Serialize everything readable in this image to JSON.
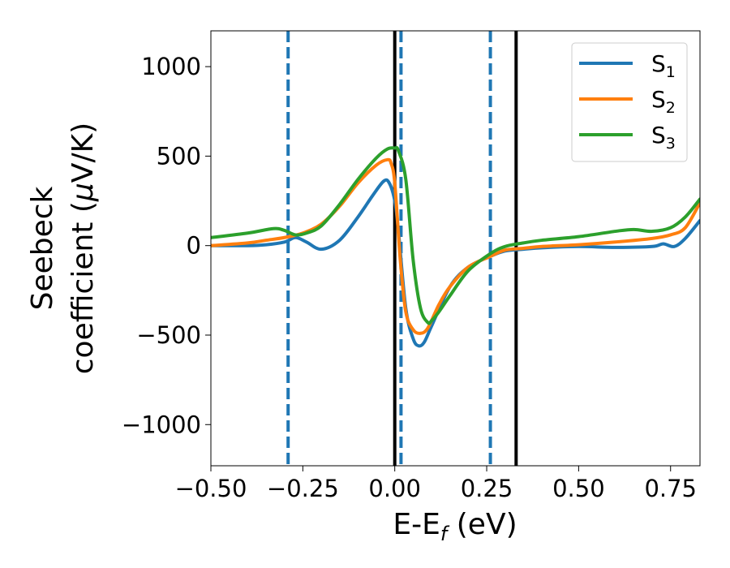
{
  "chart_data": {
    "type": "line",
    "title": "",
    "xlabel": {
      "base": "E-E",
      "sub": "f",
      "suffix": " (eV)"
    },
    "ylabel": {
      "line1": "Seebeck",
      "line2": "coefficient  (",
      "mu": "μ",
      "line2_end": "V/K)"
    },
    "xlim": [
      -0.5,
      0.83
    ],
    "ylim": [
      -1230,
      1200
    ],
    "xticks": [
      -0.5,
      -0.25,
      0.0,
      0.25,
      0.5,
      0.75
    ],
    "xtick_labels": [
      "−0.50",
      "−0.25",
      "0.00",
      "0.25",
      "0.50",
      "0.75"
    ],
    "yticks": [
      1000,
      500,
      0,
      -500,
      -1000
    ],
    "ytick_labels": [
      "1000",
      "500",
      "0",
      "−500",
      "−1000"
    ],
    "grid": false,
    "legend_position": "top-right",
    "series": [
      {
        "name": "S",
        "sub": "1",
        "color": "#1f77b4",
        "x": [
          -0.5,
          -0.4,
          -0.35,
          -0.3,
          -0.27,
          -0.24,
          -0.2,
          -0.15,
          -0.1,
          -0.06,
          -0.03,
          -0.015,
          0.0,
          0.01,
          0.03,
          0.05,
          0.065,
          0.08,
          0.1,
          0.15,
          0.2,
          0.26,
          0.3,
          0.35,
          0.4,
          0.5,
          0.6,
          0.7,
          0.73,
          0.76,
          0.79,
          0.83
        ],
        "y": [
          0,
          0,
          5,
          20,
          45,
          20,
          -20,
          30,
          160,
          280,
          360,
          350,
          250,
          80,
          -350,
          -520,
          -560,
          -540,
          -450,
          -230,
          -120,
          -60,
          -30,
          -20,
          -12,
          -5,
          -10,
          -5,
          10,
          -5,
          40,
          140
        ]
      },
      {
        "name": "S",
        "sub": "2",
        "color": "#ff7f0e",
        "x": [
          -0.5,
          -0.4,
          -0.35,
          -0.3,
          -0.25,
          -0.2,
          -0.15,
          -0.1,
          -0.05,
          -0.02,
          -0.01,
          0.0,
          0.015,
          0.03,
          0.05,
          0.07,
          0.09,
          0.12,
          0.15,
          0.2,
          0.26,
          0.3,
          0.35,
          0.4,
          0.5,
          0.6,
          0.7,
          0.75,
          0.79,
          0.83
        ],
        "y": [
          0,
          15,
          30,
          45,
          70,
          120,
          220,
          350,
          450,
          480,
          460,
          350,
          -80,
          -370,
          -470,
          -490,
          -460,
          -330,
          -230,
          -120,
          -60,
          -25,
          -15,
          -5,
          5,
          20,
          40,
          60,
          100,
          240
        ]
      },
      {
        "name": "S",
        "sub": "3",
        "color": "#2ca02c",
        "x": [
          -0.5,
          -0.4,
          -0.33,
          -0.3,
          -0.27,
          -0.24,
          -0.2,
          -0.15,
          -0.1,
          -0.05,
          -0.02,
          0.0,
          0.01,
          0.03,
          0.05,
          0.07,
          0.09,
          0.1,
          0.12,
          0.15,
          0.2,
          0.26,
          0.3,
          0.35,
          0.4,
          0.5,
          0.6,
          0.65,
          0.7,
          0.75,
          0.79,
          0.83
        ],
        "y": [
          45,
          70,
          95,
          85,
          60,
          70,
          110,
          230,
          370,
          490,
          540,
          545,
          530,
          370,
          -80,
          -350,
          -430,
          -420,
          -370,
          -280,
          -140,
          -45,
          -5,
          15,
          30,
          50,
          80,
          90,
          80,
          100,
          160,
          260
        ]
      }
    ],
    "vlines": [
      {
        "x": -0.29,
        "style": "dashed",
        "color": "#1f77b4"
      },
      {
        "x": 0.0,
        "style": "solid",
        "color": "#000000"
      },
      {
        "x": 0.017,
        "style": "dashed",
        "color": "#1f77b4"
      },
      {
        "x": 0.26,
        "style": "dashed",
        "color": "#1f77b4"
      },
      {
        "x": 0.33,
        "style": "solid",
        "color": "#000000"
      }
    ]
  }
}
